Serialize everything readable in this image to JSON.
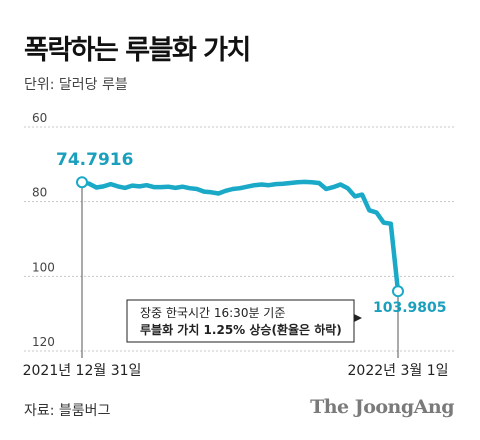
{
  "header": {
    "title": "폭락하는 루블화 가치",
    "unit_label": "단위: 달러당 루블"
  },
  "footer": {
    "source": "자료: 블룸버그",
    "brand": "The JoongAng"
  },
  "colors": {
    "line": "#1aa9c7",
    "grid": "#c8c8c8",
    "label_accent": "#1a9fbc"
  },
  "chart_data": {
    "type": "line",
    "title": "폭락하는 루블화 가치",
    "ylabel": "단위: 달러당 루블",
    "y_axis_inverted": true,
    "ylim": [
      60,
      120
    ],
    "y_ticks": [
      60,
      80,
      100,
      120
    ],
    "grid": true,
    "x_tick_labels": [
      "2021년 12월 31일",
      "2022년 3월 1일"
    ],
    "series": [
      {
        "values": [
          74.7916,
          75.2,
          76.2,
          75.9,
          75.3,
          75.9,
          76.3,
          75.7,
          75.9,
          75.6,
          76.1,
          76.1,
          76.0,
          76.3,
          76.0,
          76.4,
          76.6,
          77.3,
          77.5,
          77.8,
          77.1,
          76.6,
          76.4,
          76.0,
          75.6,
          75.4,
          75.6,
          75.3,
          75.2,
          75.0,
          74.8,
          74.7,
          74.8,
          75.0,
          76.6,
          76.1,
          75.4,
          76.4,
          78.6,
          78.1,
          82.3,
          82.9,
          85.6,
          85.9,
          103.9805
        ]
      }
    ],
    "annotations": {
      "start": {
        "label": "74.7916",
        "value": 74.7916
      },
      "end": {
        "label": "103.9805",
        "value": 103.9805
      },
      "note_line1": "장중 한국시간 16:30분 기준",
      "note_line2": "루블화 가치 1.25% 상승(환율은 하락)"
    }
  }
}
